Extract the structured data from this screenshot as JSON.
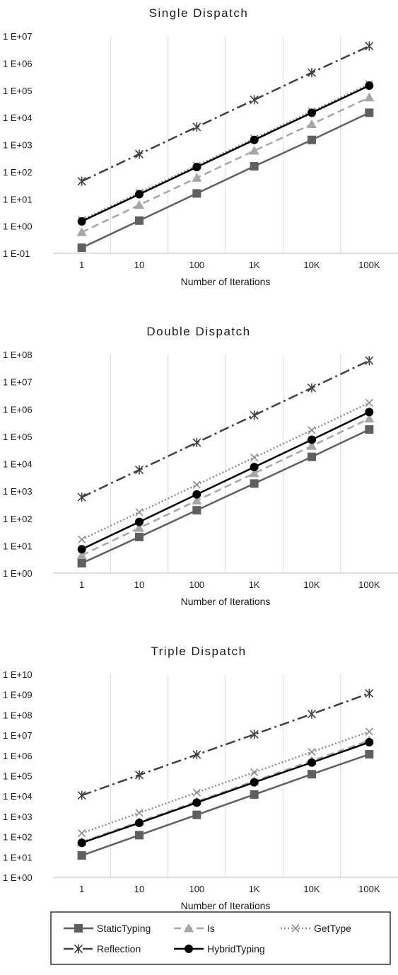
{
  "chart_data": [
    {
      "type": "line",
      "title": "Single Dispatch",
      "xlabel": "Number of Iterations",
      "ylabel": "",
      "x": [
        "1",
        "10",
        "100",
        "1K",
        "10K",
        "100K"
      ],
      "y_scale": "log",
      "ylim": [
        0.1,
        10000000
      ],
      "y_ticks": [
        "1 E-01",
        "1 E+00",
        "1 E+01",
        "1 E+02",
        "1 E+03",
        "1 E+04",
        "1 E+05",
        "1 E+06",
        "1 E+07"
      ],
      "grid": "vertical",
      "series": [
        {
          "name": "StaticTyping",
          "values": [
            0.16,
            1.6,
            16,
            160,
            1500,
            15000
          ]
        },
        {
          "name": "Is",
          "values": [
            0.6,
            6,
            60,
            600,
            5700,
            55000
          ]
        },
        {
          "name": "GetType",
          "values": [
            1.7,
            17,
            170,
            1700,
            17000,
            170000
          ]
        },
        {
          "name": "Reflection",
          "values": [
            45,
            450,
            4500,
            45000,
            450000,
            4300000
          ]
        },
        {
          "name": "HybridTyping",
          "values": [
            1.5,
            15,
            150,
            1500,
            15000,
            150000
          ]
        }
      ]
    },
    {
      "type": "line",
      "title": "Double Dispatch",
      "xlabel": "Number of Iterations",
      "ylabel": "",
      "x": [
        "1",
        "10",
        "100",
        "1K",
        "10K",
        "100K"
      ],
      "y_scale": "log",
      "ylim": [
        1,
        100000000
      ],
      "y_ticks": [
        "1 E+00",
        "1 E+01",
        "1 E+02",
        "1 E+03",
        "1 E+04",
        "1 E+05",
        "1 E+06",
        "1 E+07",
        "1 E+08"
      ],
      "grid": "vertical",
      "series": [
        {
          "name": "StaticTyping",
          "values": [
            2.3,
            21,
            200,
            1900,
            18000,
            180000
          ]
        },
        {
          "name": "Is",
          "values": [
            4.5,
            45,
            450,
            4500,
            45000,
            450000
          ]
        },
        {
          "name": "GetType",
          "values": [
            17,
            170,
            1700,
            17000,
            170000,
            1700000
          ]
        },
        {
          "name": "Reflection",
          "values": [
            600,
            6000,
            60000,
            600000,
            6000000,
            60000000
          ]
        },
        {
          "name": "HybridTyping",
          "values": [
            7.5,
            75,
            760,
            7600,
            76000,
            780000
          ]
        }
      ]
    },
    {
      "type": "line",
      "title": "Triple Dispatch",
      "xlabel": "Number of Iterations",
      "ylabel": "",
      "x": [
        "1",
        "10",
        "100",
        "1K",
        "10K",
        "100K"
      ],
      "y_scale": "log",
      "ylim": [
        1,
        10000000000
      ],
      "y_ticks": [
        "1 E+00",
        "1 E+01",
        "1 E+02",
        "1 E+03",
        "1 E+04",
        "1 E+05",
        "1 E+06",
        "1 E+07",
        "1 E+08",
        "1 E+09",
        "1 E+10"
      ],
      "grid": "vertical",
      "series": [
        {
          "name": "StaticTyping",
          "values": [
            12,
            120,
            1200,
            12000,
            120000,
            1150000
          ]
        },
        {
          "name": "Is",
          "values": [
            55,
            550,
            5500,
            55000,
            550000,
            5500000
          ]
        },
        {
          "name": "GetType",
          "values": [
            150,
            1500,
            15000,
            150000,
            1500000,
            15000000
          ]
        },
        {
          "name": "Reflection",
          "values": [
            11000,
            110000,
            1100000,
            11000000,
            110000000,
            1150000000
          ]
        },
        {
          "name": "HybridTyping",
          "values": [
            50,
            480,
            4800,
            48000,
            450000,
            4500000
          ]
        }
      ]
    }
  ],
  "legend": {
    "placement": "bottom",
    "items": [
      "StaticTyping",
      "Is",
      "GetType",
      "Reflection",
      "HybridTyping"
    ]
  },
  "series_styles": {
    "StaticTyping": {
      "color": "#5f5f5f",
      "dash": "solid",
      "marker": "square"
    },
    "Is": {
      "color": "#a6a6a6",
      "dash": "dashed",
      "marker": "triangle"
    },
    "GetType": {
      "color": "#8c8c8c",
      "dash": "dotted",
      "marker": "x"
    },
    "Reflection": {
      "color": "#404040",
      "dash": "dash-dot",
      "marker": "star"
    },
    "HybridTyping": {
      "color": "#000000",
      "dash": "solid",
      "marker": "circle"
    }
  },
  "grid_color": "#d9d9d9",
  "axis_color": "#bfbfbf"
}
